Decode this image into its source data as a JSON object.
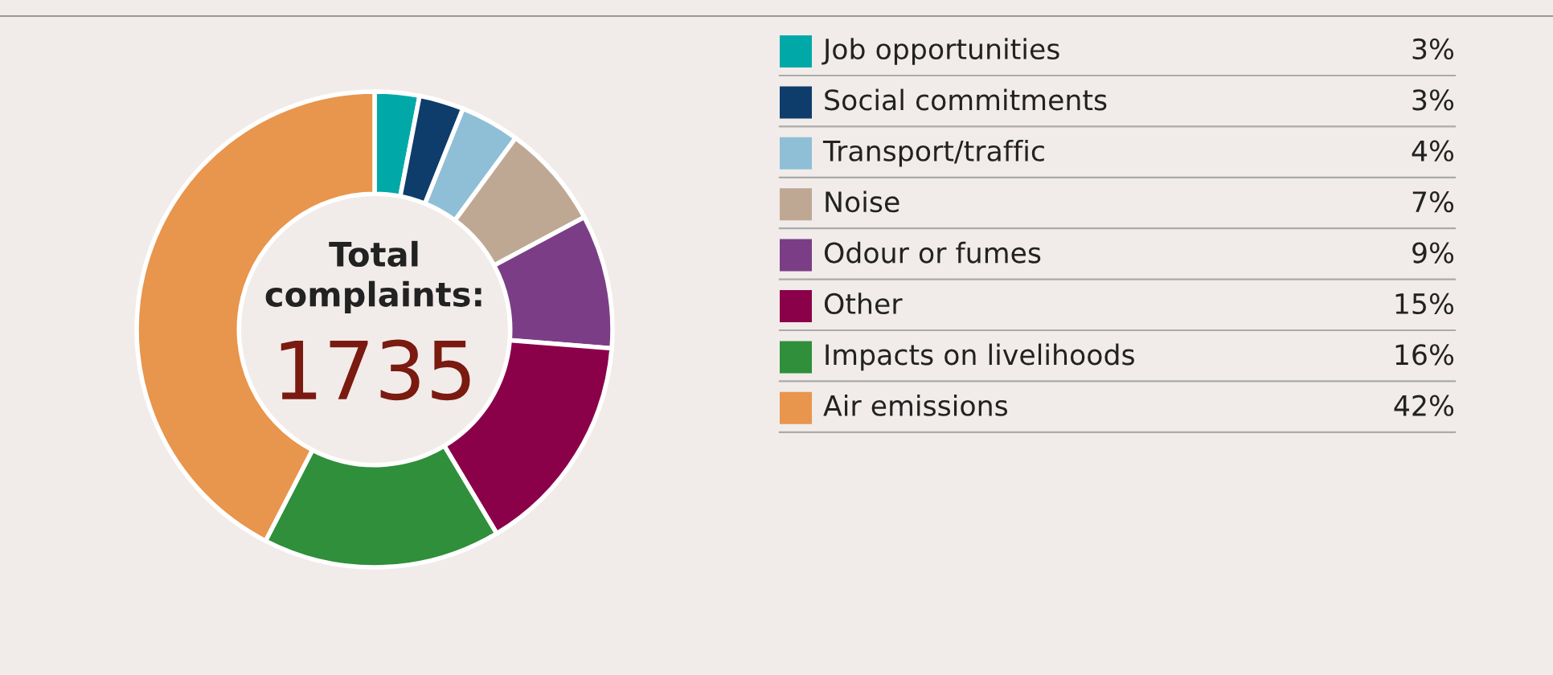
{
  "chart_data": {
    "type": "donut",
    "categories": [
      "Job opportunities",
      "Social commitments",
      "Transport/traffic",
      "Noise",
      "Odour or fumes",
      "Other",
      "Impacts on livelihoods",
      "Air emissions"
    ],
    "values": [
      3,
      3,
      4,
      7,
      9,
      15,
      16,
      42
    ],
    "colors": [
      "#00a9a8",
      "#0e3d6b",
      "#8fbfd6",
      "#bfa893",
      "#7b3e86",
      "#8a0049",
      "#2f8f3b",
      "#e8954d"
    ],
    "value_labels": [
      "3%",
      "3%",
      "4%",
      "7%",
      "9%",
      "15%",
      "16%",
      "42%"
    ],
    "annotations": [
      "Total complaints:",
      "1735"
    ],
    "legend": "right"
  }
}
